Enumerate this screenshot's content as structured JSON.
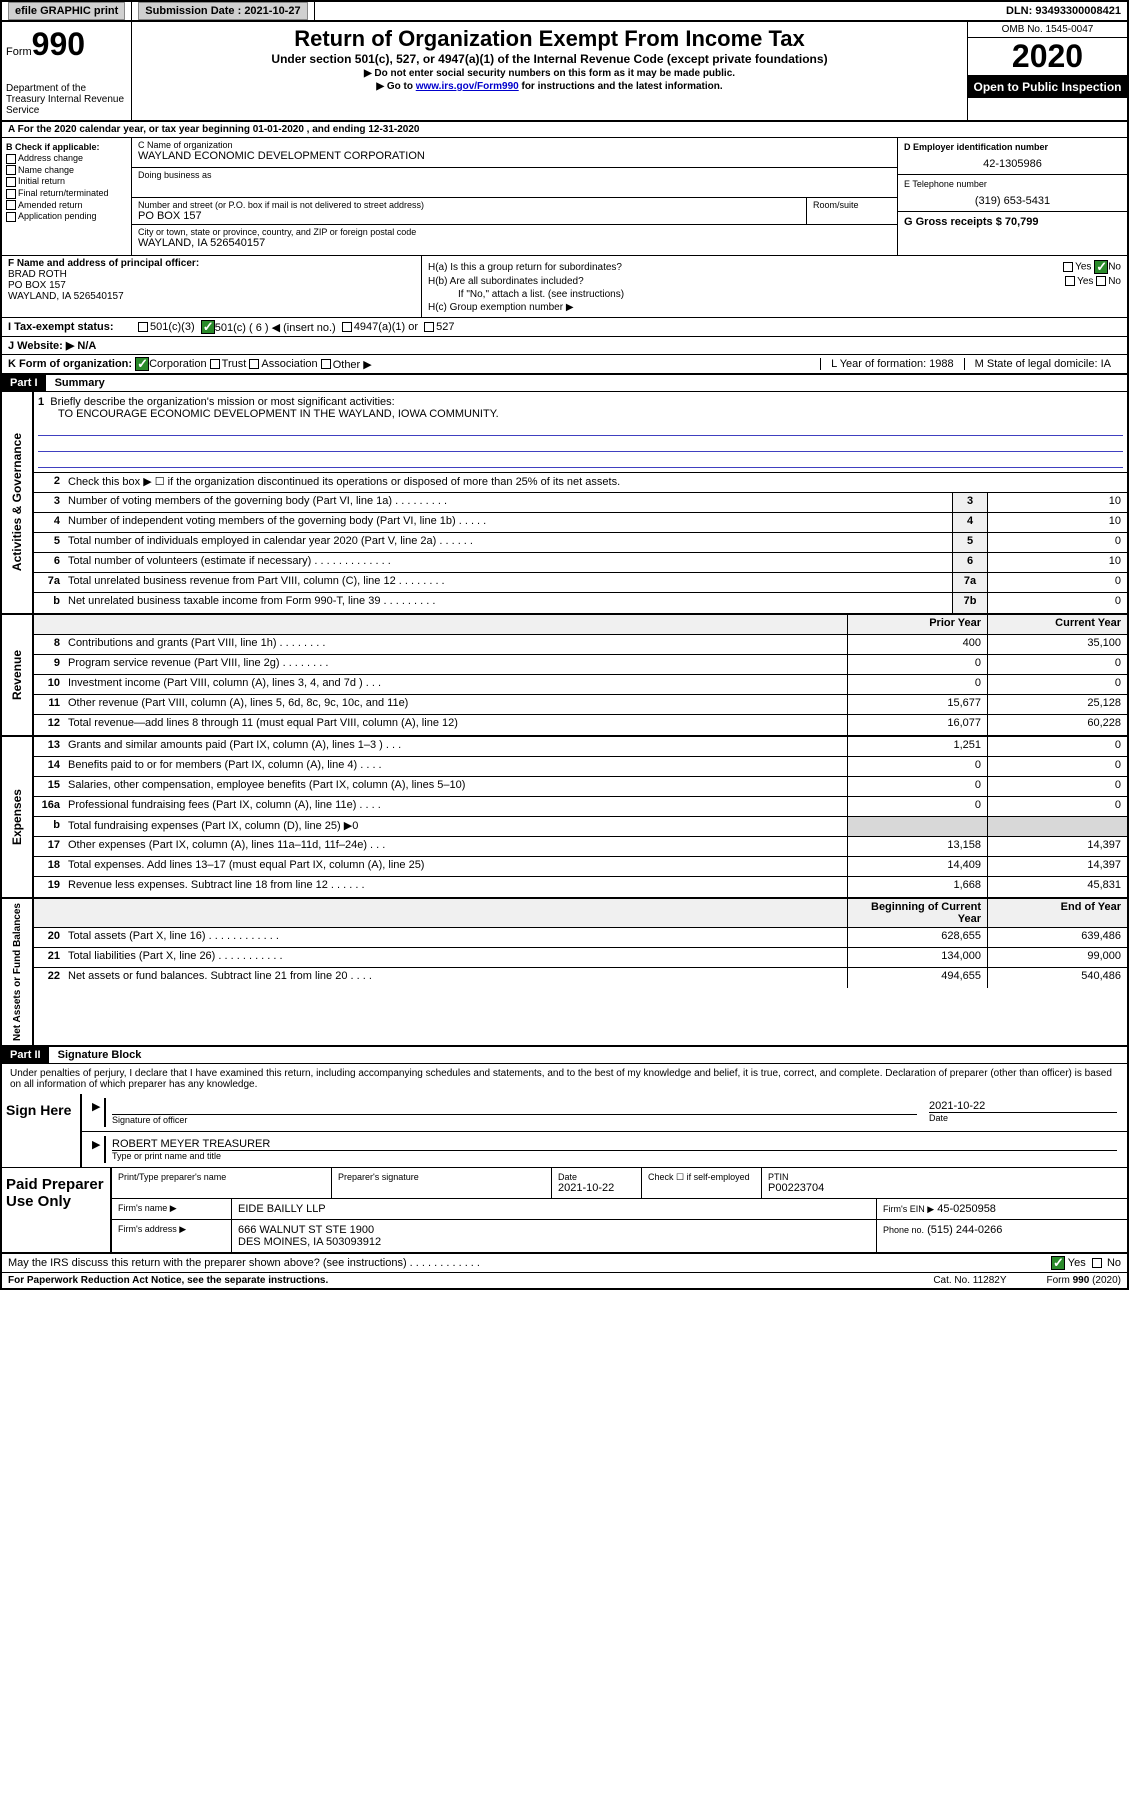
{
  "top": {
    "efile": "efile GRAPHIC print",
    "submission_label": "Submission Date : 2021-10-27",
    "dln": "DLN: 93493300008421"
  },
  "header": {
    "form_word": "Form",
    "form_num": "990",
    "dept": "Department of the Treasury Internal Revenue Service",
    "title": "Return of Organization Exempt From Income Tax",
    "subtitle": "Under section 501(c), 527, or 4947(a)(1) of the Internal Revenue Code (except private foundations)",
    "note1": "▶ Do not enter social security numbers on this form as it may be made public.",
    "note2_pre": "▶ Go to ",
    "note2_link": "www.irs.gov/Form990",
    "note2_post": " for instructions and the latest information.",
    "omb": "OMB No. 1545-0047",
    "year": "2020",
    "open": "Open to Public Inspection"
  },
  "rowA": "A For the 2020 calendar year, or tax year beginning 01-01-2020    , and ending 12-31-2020",
  "colB": {
    "title": "B Check if applicable:",
    "opts": [
      "Address change",
      "Name change",
      "Initial return",
      "Final return/terminated",
      "Amended return",
      "Application pending"
    ]
  },
  "colC": {
    "name_label": "C Name of organization",
    "name": "WAYLAND ECONOMIC DEVELOPMENT CORPORATION",
    "dba_label": "Doing business as",
    "addr_label": "Number and street (or P.O. box if mail is not delivered to street address)",
    "room_label": "Room/suite",
    "addr": "PO BOX 157",
    "city_label": "City or town, state or province, country, and ZIP or foreign postal code",
    "city": "WAYLAND, IA  526540157"
  },
  "colD": {
    "ein_label": "D Employer identification number",
    "ein": "42-1305986",
    "tel_label": "E Telephone number",
    "tel": "(319) 653-5431",
    "gross_label": "G Gross receipts $ 70,799"
  },
  "blockF": {
    "label": "F  Name and address of principal officer:",
    "name": "BRAD ROTH",
    "addr1": "PO BOX 157",
    "addr2": "WAYLAND, IA  526540157"
  },
  "blockH": {
    "ha": "H(a)  Is this a group return for subordinates?",
    "hb": "H(b)  Are all subordinates included?",
    "hb_note": "If \"No,\" attach a list. (see instructions)",
    "hc": "H(c)  Group exemption number ▶",
    "yes": "Yes",
    "no": "No"
  },
  "rowI": {
    "label": "I   Tax-exempt status:",
    "c3": "501(c)(3)",
    "c": "501(c) ( 6 ) ◀ (insert no.)",
    "a1": "4947(a)(1) or",
    "s527": "527"
  },
  "rowJ": "J   Website: ▶  N/A",
  "rowK": {
    "label": "K Form of organization:",
    "corp": "Corporation",
    "trust": "Trust",
    "assoc": "Association",
    "other": "Other ▶"
  },
  "rowL": "L Year of formation: 1988",
  "rowM": "M State of legal domicile: IA",
  "part1": {
    "hdr": "Part I",
    "title": "Summary",
    "l1": "Briefly describe the organization's mission or most significant activities:",
    "mission": "TO ENCOURAGE ECONOMIC DEVELOPMENT IN THE WAYLAND, IOWA COMMUNITY.",
    "l2": "Check this box ▶ ☐  if the organization discontinued its operations or disposed of more than 25% of its net assets.",
    "gov_label": "Activities & Governance",
    "lines_gov": [
      {
        "n": "3",
        "t": "Number of voting members of the governing body (Part VI, line 1a)   .   .   .   .   .   .   .   .   .",
        "box": "3",
        "v": "10"
      },
      {
        "n": "4",
        "t": "Number of independent voting members of the governing body (Part VI, line 1b)  .   .   .   .   .",
        "box": "4",
        "v": "10"
      },
      {
        "n": "5",
        "t": "Total number of individuals employed in calendar year 2020 (Part V, line 2a)   .   .   .   .   .   .",
        "box": "5",
        "v": "0"
      },
      {
        "n": "6",
        "t": "Total number of volunteers (estimate if necessary)    .   .   .   .   .   .   .   .   .   .   .   .   .",
        "box": "6",
        "v": "10"
      },
      {
        "n": "7a",
        "t": "Total unrelated business revenue from Part VIII, column (C), line 12   .   .   .   .   .   .   .   .",
        "box": "7a",
        "v": "0"
      },
      {
        "n": "b",
        "t": "Net unrelated business taxable income from Form 990-T, line 39   .   .   .   .   .   .   .   .   .",
        "box": "7b",
        "v": "0"
      }
    ],
    "prior": "Prior Year",
    "current": "Current Year",
    "rev_label": "Revenue",
    "lines_rev": [
      {
        "n": "8",
        "t": "Contributions and grants (Part VIII, line 1h)   .   .   .   .   .   .   .   .",
        "p": "400",
        "c": "35,100"
      },
      {
        "n": "9",
        "t": "Program service revenue (Part VIII, line 2g)   .   .   .   .   .   .   .   .",
        "p": "0",
        "c": "0"
      },
      {
        "n": "10",
        "t": "Investment income (Part VIII, column (A), lines 3, 4, and 7d )   .   .   .",
        "p": "0",
        "c": "0"
      },
      {
        "n": "11",
        "t": "Other revenue (Part VIII, column (A), lines 5, 6d, 8c, 9c, 10c, and 11e)",
        "p": "15,677",
        "c": "25,128"
      },
      {
        "n": "12",
        "t": "Total revenue—add lines 8 through 11 (must equal Part VIII, column (A), line 12)",
        "p": "16,077",
        "c": "60,228"
      }
    ],
    "exp_label": "Expenses",
    "lines_exp": [
      {
        "n": "13",
        "t": "Grants and similar amounts paid (Part IX, column (A), lines 1–3 )   .   .   .",
        "p": "1,251",
        "c": "0"
      },
      {
        "n": "14",
        "t": "Benefits paid to or for members (Part IX, column (A), line 4)   .   .   .   .",
        "p": "0",
        "c": "0"
      },
      {
        "n": "15",
        "t": "Salaries, other compensation, employee benefits (Part IX, column (A), lines 5–10)",
        "p": "0",
        "c": "0"
      },
      {
        "n": "16a",
        "t": "Professional fundraising fees (Part IX, column (A), line 11e)   .   .   .   .",
        "p": "0",
        "c": "0"
      },
      {
        "n": "b",
        "t": "Total fundraising expenses (Part IX, column (D), line 25) ▶0",
        "p": "",
        "c": "",
        "shaded": true
      },
      {
        "n": "17",
        "t": "Other expenses (Part IX, column (A), lines 11a–11d, 11f–24e)   .   .   .",
        "p": "13,158",
        "c": "14,397"
      },
      {
        "n": "18",
        "t": "Total expenses. Add lines 13–17 (must equal Part IX, column (A), line 25)",
        "p": "14,409",
        "c": "14,397"
      },
      {
        "n": "19",
        "t": "Revenue less expenses. Subtract line 18 from line 12  .   .   .   .   .   .",
        "p": "1,668",
        "c": "45,831"
      }
    ],
    "na_label": "Net Assets or Fund Balances",
    "boy": "Beginning of Current Year",
    "eoy": "End of Year",
    "lines_na": [
      {
        "n": "20",
        "t": "Total assets (Part X, line 16)   .   .   .   .   .   .   .   .   .   .   .   .",
        "p": "628,655",
        "c": "639,486"
      },
      {
        "n": "21",
        "t": "Total liabilities (Part X, line 26)   .   .   .   .   .   .   .   .   .   .   .",
        "p": "134,000",
        "c": "99,000"
      },
      {
        "n": "22",
        "t": "Net assets or fund balances. Subtract line 21 from line 20   .   .   .   .",
        "p": "494,655",
        "c": "540,486"
      }
    ]
  },
  "part2": {
    "hdr": "Part II",
    "title": "Signature Block",
    "decl": "Under penalties of perjury, I declare that I have examined this return, including accompanying schedules and statements, and to the best of my knowledge and belief, it is true, correct, and complete. Declaration of preparer (other than officer) is based on all information of which preparer has any knowledge.",
    "sign_here": "Sign Here",
    "sig_officer": "Signature of officer",
    "sig_date": "2021-10-22",
    "date_lbl": "Date",
    "officer_name": "ROBERT MEYER  TREASURER",
    "type_name": "Type or print name and title",
    "paid": "Paid Preparer Use Only",
    "prep_name_lbl": "Print/Type preparer's name",
    "prep_sig_lbl": "Preparer's signature",
    "prep_date_lbl": "Date",
    "prep_date": "2021-10-22",
    "check_self": "Check ☐ if self-employed",
    "ptin_lbl": "PTIN",
    "ptin": "P00223704",
    "firm_name_lbl": "Firm's name    ▶",
    "firm_name": "EIDE BAILLY LLP",
    "firm_ein_lbl": "Firm's EIN ▶",
    "firm_ein": "45-0250958",
    "firm_addr_lbl": "Firm's address ▶",
    "firm_addr1": "666 WALNUT ST STE 1900",
    "firm_addr2": "DES MOINES, IA  503093912",
    "phone_lbl": "Phone no.",
    "phone": "(515) 244-0266",
    "discuss": "May the IRS discuss this return with the preparer shown above? (see instructions)   .   .   .   .   .   .   .   .   .   .   .   ."
  },
  "footer": {
    "left": "For Paperwork Reduction Act Notice, see the separate instructions.",
    "mid": "Cat. No. 11282Y",
    "right": "Form 990 (2020)"
  }
}
